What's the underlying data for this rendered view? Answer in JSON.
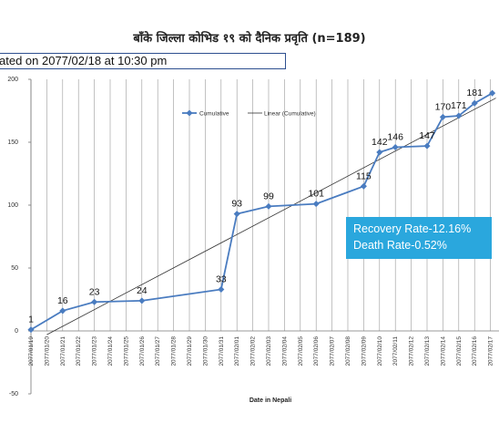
{
  "chart_data": {
    "type": "line",
    "title": "बाँके जिल्ला कोभिड १९ को दैनिक प्रवृति (n=189)",
    "updated_text": "ated on 2077/02/18 at 10:30 pm",
    "xlabel": "Date in Nepali",
    "ylabel": "",
    "ylim": [
      -50,
      200
    ],
    "yticks": [
      -50,
      0,
      50,
      100,
      150,
      200
    ],
    "grid": "vertical",
    "legend_position": "top-center",
    "categories": [
      "2077/01/19",
      "2077/01/20",
      "2077/01/21",
      "2077/01/22",
      "2077/01/23",
      "2077/01/24",
      "2077/01/25",
      "2077/01/26",
      "2077/01/27",
      "2077/01/28",
      "2077/01/29",
      "2077/01/30",
      "2077/01/31",
      "2077/02/01",
      "2077/02/02",
      "2077/02/03",
      "2077/02/04",
      "2077/02/05",
      "2077/02/06",
      "2077/02/07",
      "2077/02/08",
      "2077/02/09",
      "2077/02/10",
      "2077/02/11",
      "2077/02/12",
      "2077/02/13",
      "2077/02/14",
      "2077/02/15",
      "2077/02/16",
      "2077/02/17"
    ],
    "series": [
      {
        "name": "Cumulative",
        "color": "#4a7cc0",
        "points": [
          {
            "x": "2077/01/19",
            "y": 1,
            "label": "1"
          },
          {
            "x": "2077/01/21",
            "y": 16,
            "label": "16"
          },
          {
            "x": "2077/01/23",
            "y": 23,
            "label": "23"
          },
          {
            "x": "2077/01/26",
            "y": 24,
            "label": "24"
          },
          {
            "x": "2077/01/31",
            "y": 33,
            "label": "33"
          },
          {
            "x": "2077/02/01",
            "y": 93,
            "label": "93"
          },
          {
            "x": "2077/02/03",
            "y": 99,
            "label": "99"
          },
          {
            "x": "2077/02/06",
            "y": 101,
            "label": "101"
          },
          {
            "x": "2077/02/09",
            "y": 115,
            "label": "115"
          },
          {
            "x": "2077/02/10",
            "y": 142,
            "label": "142"
          },
          {
            "x": "2077/02/11",
            "y": 146,
            "label": "146"
          },
          {
            "x": "2077/02/13",
            "y": 147,
            "label": "147"
          },
          {
            "x": "2077/02/14",
            "y": 170,
            "label": "170"
          },
          {
            "x": "2077/02/15",
            "y": 171,
            "label": "171"
          },
          {
            "x": "2077/02/16",
            "y": 181,
            "label": "181"
          },
          {
            "x": "2077/02/17",
            "y": 189,
            "label": ""
          }
        ]
      },
      {
        "name": "Linear (Cumulative)",
        "color": "#333333",
        "trendline": {
          "from": {
            "x": "2077/01/20",
            "y": -3
          },
          "to": {
            "x": "2077/02/17",
            "y": 184
          }
        }
      }
    ],
    "annotation": {
      "lines": [
        "Recovery Rate-12.16%",
        "Death Rate-0.52%"
      ],
      "background": "#2aa7dd",
      "text_color": "#ffffff"
    }
  }
}
